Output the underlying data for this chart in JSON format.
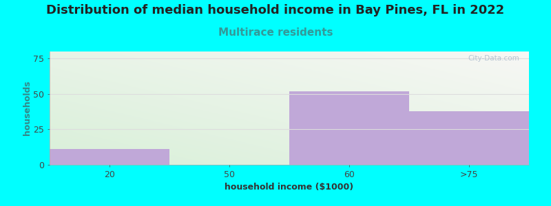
{
  "title": "Distribution of median household income in Bay Pines, FL in 2022",
  "subtitle": "Multirace residents",
  "xlabel": "household income ($1000)",
  "ylabel": "households",
  "background_color": "#00ffff",
  "plot_bg_left": "#d8efd8",
  "plot_bg_right": "#f0f0ee",
  "plot_bg_top": "#f8f8f6",
  "plot_bg_bottom": "#d8eed8",
  "bar_color": "#c0a8d8",
  "bar_edge_color": "none",
  "categories": [
    "20",
    "50",
    "60",
    ">75"
  ],
  "values": [
    11,
    0,
    52,
    38
  ],
  "xlim": [
    0,
    4
  ],
  "bar_lefts": [
    0,
    1,
    2,
    3
  ],
  "bar_width": 1.0,
  "ylim": [
    0,
    80
  ],
  "yticks": [
    0,
    25,
    50,
    75
  ],
  "title_fontsize": 13,
  "subtitle_fontsize": 11,
  "title_color": "#222222",
  "subtitle_color": "#339999",
  "ylabel_color": "#338888",
  "axis_label_fontsize": 9,
  "tick_fontsize": 9,
  "watermark_text": "City-Data.com",
  "watermark_color": "#aabbcc",
  "grid_color": "#dddddd"
}
